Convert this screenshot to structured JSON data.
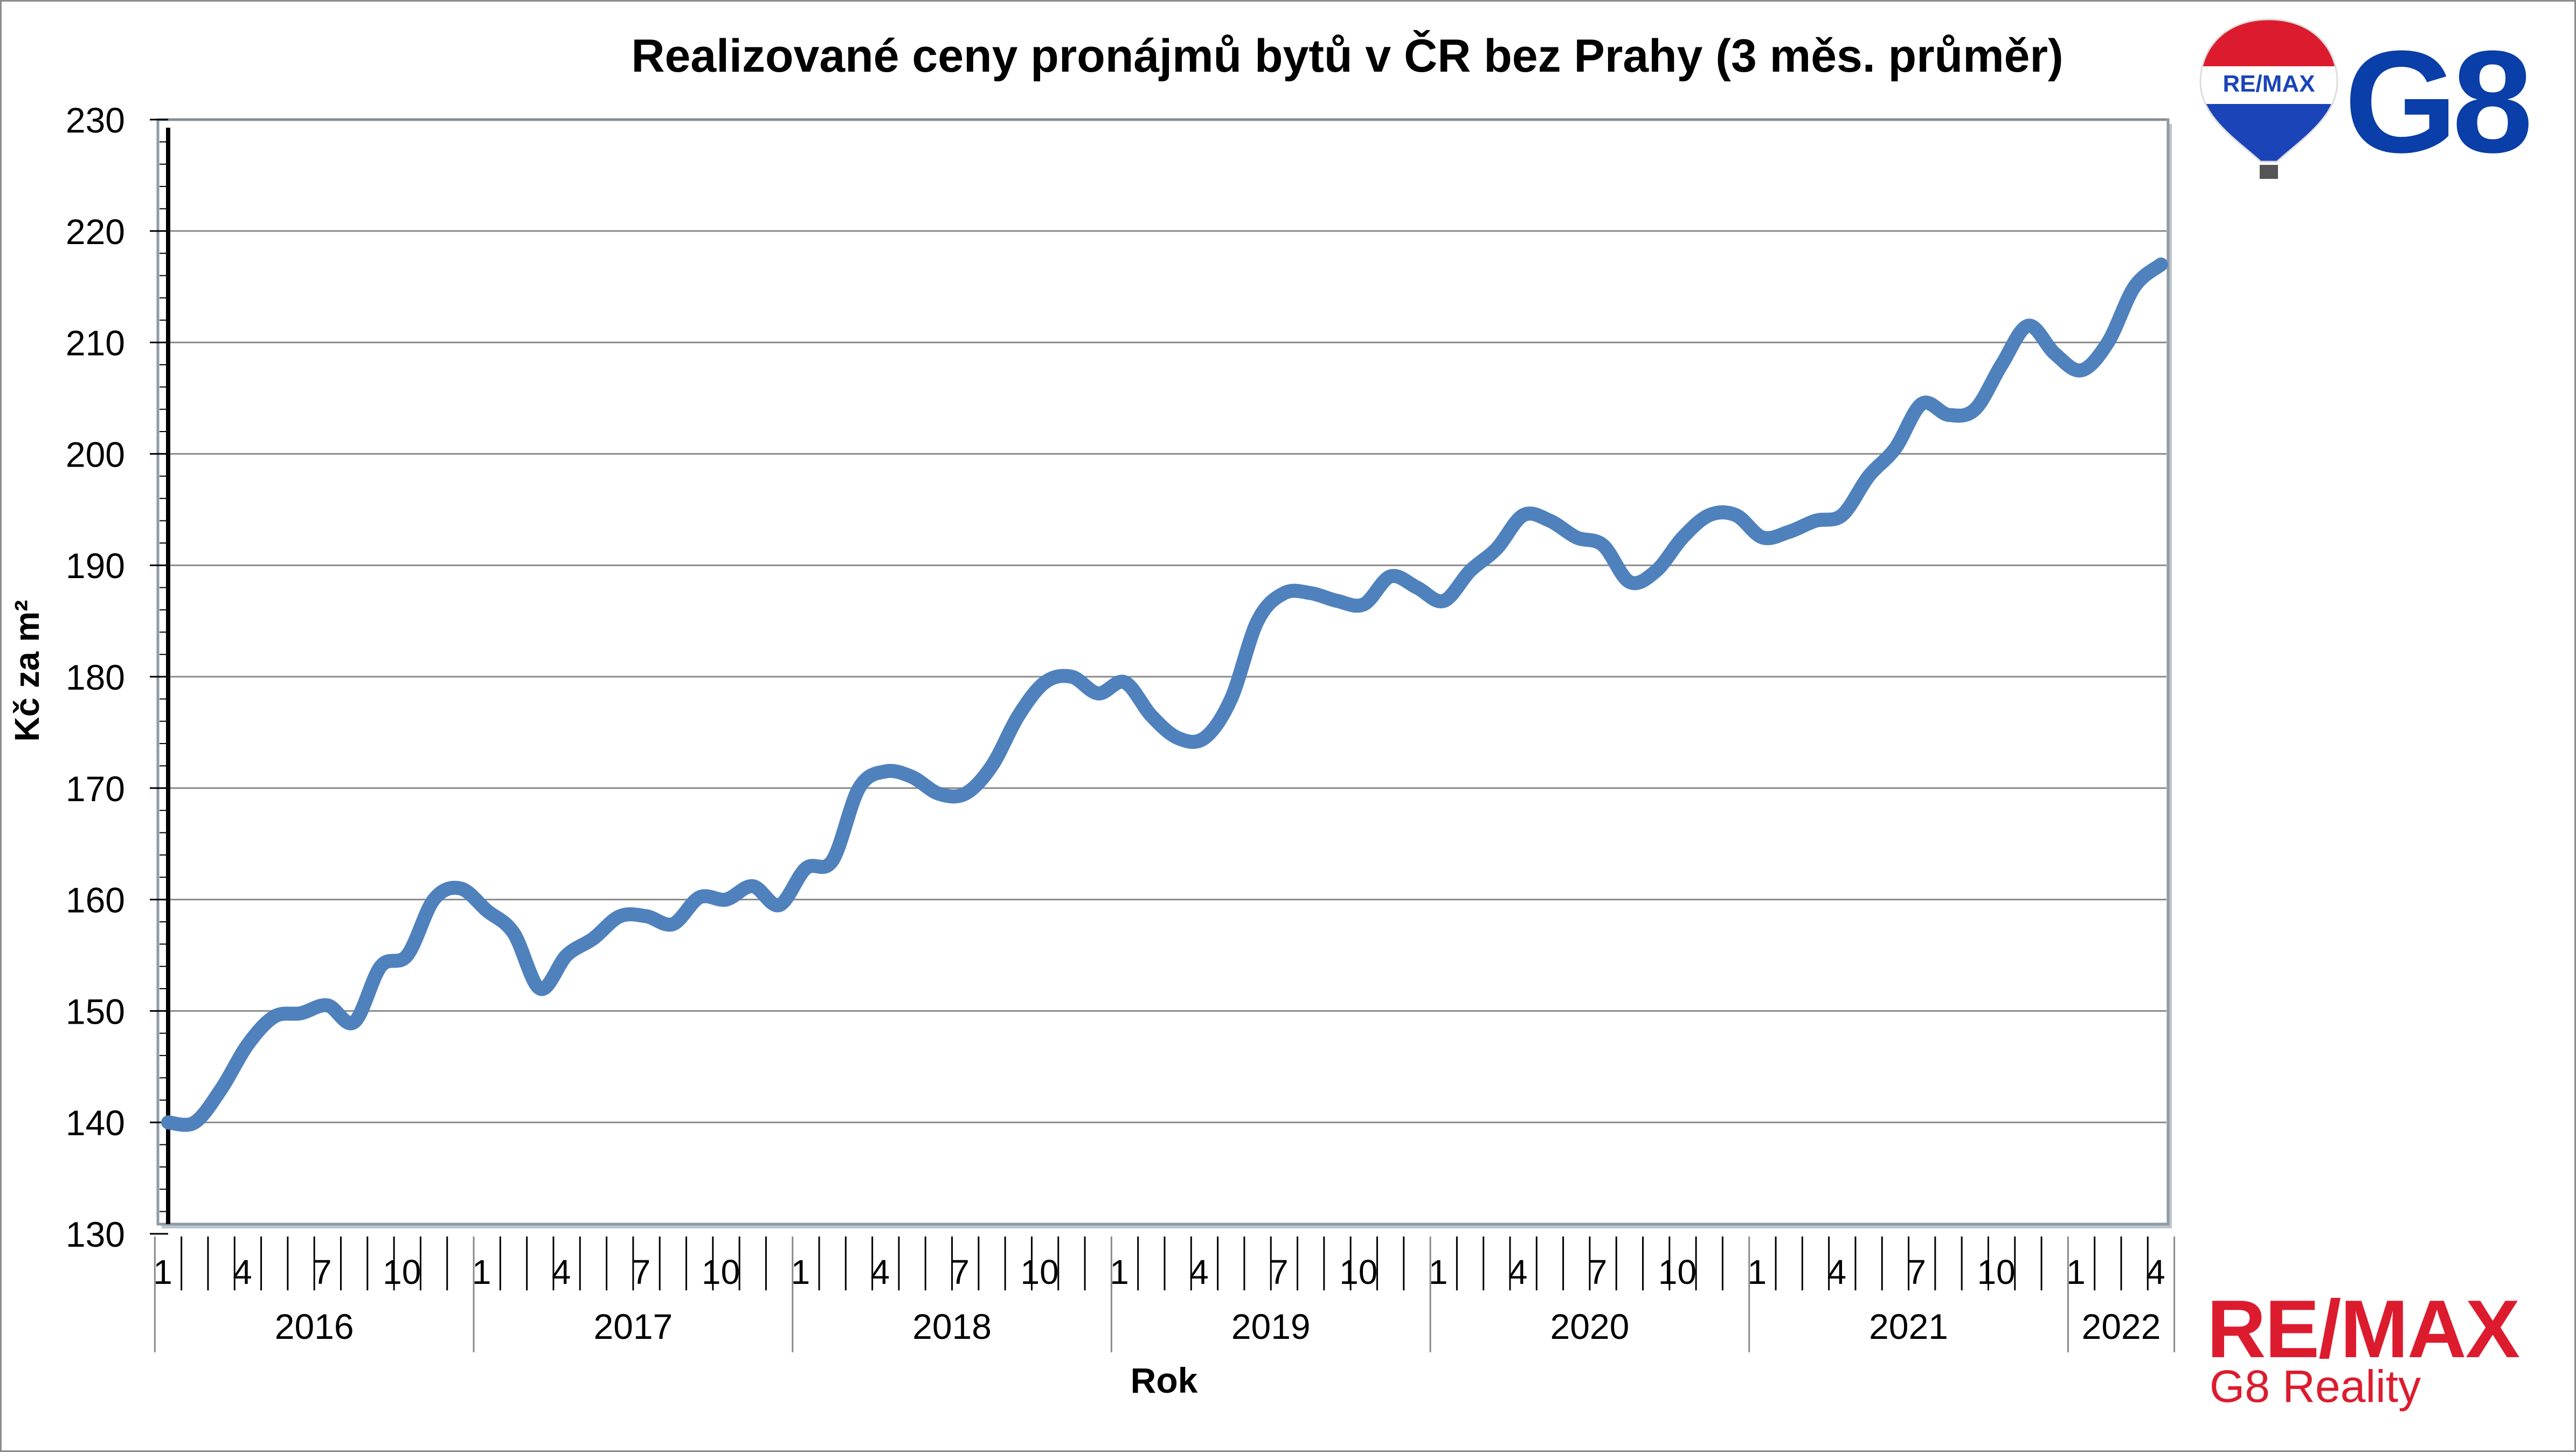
{
  "chart_data": {
    "type": "line",
    "title": "Realizované ceny pronájmů bytů v ČR bez Prahy (3 měs. průměr)",
    "xlabel": "Rok",
    "ylabel": "Kč za m²",
    "ylim": [
      130,
      230
    ],
    "yticks": [
      "130",
      "140",
      "150",
      "160",
      "170",
      "180",
      "190",
      "200",
      "210",
      "220",
      "230"
    ],
    "month_tick_labels": [
      "1",
      "4",
      "7",
      "10"
    ],
    "years": [
      "2016",
      "2017",
      "2018",
      "2019",
      "2020",
      "2021",
      "2022"
    ],
    "grid": "horizontal",
    "legend": "none",
    "line_color": "#4f81bd",
    "series": [
      {
        "values": [
          140,
          140,
          143,
          147,
          149.5,
          149.8,
          150.5,
          149,
          154,
          155,
          160,
          161,
          159,
          157,
          152,
          155,
          156.5,
          158.5,
          158.5,
          157.8,
          160.2,
          160,
          161.2,
          159.5,
          162.8,
          163.5,
          170,
          171.5,
          171,
          169.5,
          169.5,
          172,
          176.5,
          179.5,
          180,
          178.5,
          179.5,
          176.5,
          174.5,
          174.5,
          178,
          185,
          187.5,
          187.5,
          186.8,
          186.5,
          189,
          188,
          186.8,
          189.5,
          191.5,
          194.5,
          194,
          192.5,
          191.8,
          188.5,
          189.5,
          192.5,
          194.5,
          194.5,
          192.5,
          193,
          194,
          194.5,
          198,
          200.5,
          204.5,
          203.5,
          204,
          208,
          211.5,
          209,
          207.5,
          210,
          215,
          217
        ]
      }
    ]
  },
  "branding": {
    "balloon_label": "RE/MAX",
    "g8_logo": "G8",
    "remax_logo": "RE/MAX",
    "company": "G8 Reality"
  }
}
